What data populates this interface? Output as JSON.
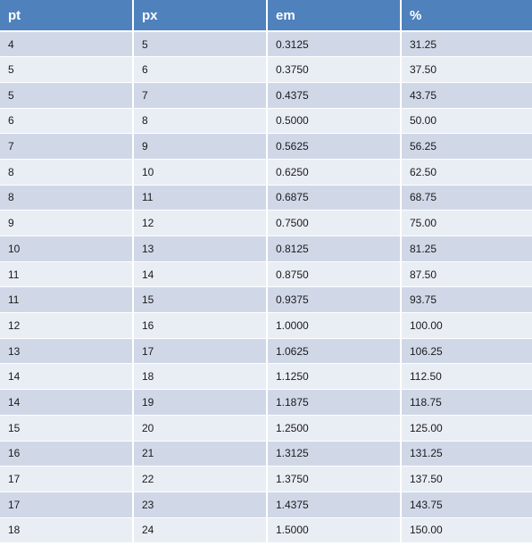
{
  "table": {
    "headers": [
      "pt",
      "px",
      "em",
      "%"
    ],
    "rows": [
      [
        "4",
        "5",
        "0.3125",
        "31.25"
      ],
      [
        "5",
        "6",
        "0.3750",
        "37.50"
      ],
      [
        "5",
        "7",
        "0.4375",
        "43.75"
      ],
      [
        "6",
        "8",
        "0.5000",
        "50.00"
      ],
      [
        "7",
        "9",
        "0.5625",
        "56.25"
      ],
      [
        "8",
        "10",
        "0.6250",
        "62.50"
      ],
      [
        "8",
        "11",
        "0.6875",
        "68.75"
      ],
      [
        "9",
        "12",
        "0.7500",
        "75.00"
      ],
      [
        "10",
        "13",
        "0.8125",
        "81.25"
      ],
      [
        "11",
        "14",
        "0.8750",
        "87.50"
      ],
      [
        "11",
        "15",
        "0.9375",
        "93.75"
      ],
      [
        "12",
        "16",
        "1.0000",
        "100.00"
      ],
      [
        "13",
        "17",
        "1.0625",
        "106.25"
      ],
      [
        "14",
        "18",
        "1.1250",
        "112.50"
      ],
      [
        "14",
        "19",
        "1.1875",
        "118.75"
      ],
      [
        "15",
        "20",
        "1.2500",
        "125.00"
      ],
      [
        "16",
        "21",
        "1.3125",
        "131.25"
      ],
      [
        "17",
        "22",
        "1.3750",
        "137.50"
      ],
      [
        "17",
        "23",
        "1.4375",
        "143.75"
      ],
      [
        "18",
        "24",
        "1.5000",
        "150.00"
      ]
    ]
  },
  "colors": {
    "header_bg": "#4f81bd",
    "header_text": "#ffffff",
    "row_odd_bg": "#d0d8e8",
    "row_even_bg": "#e9edf4"
  }
}
